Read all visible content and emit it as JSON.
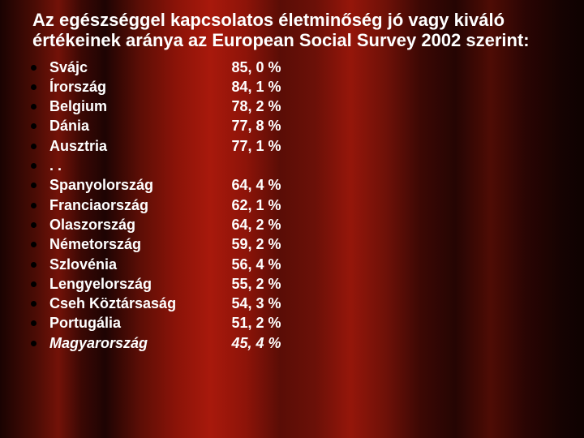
{
  "title": "Az egészséggel kapcsolatos életminőség jó vagy kiváló értékeinek aránya az European Social Survey 2002 szerint:",
  "rows": [
    {
      "country": "Svájc",
      "value": "85, 0 %",
      "italic": false
    },
    {
      "country": "Írország",
      "value": "84, 1 %",
      "italic": false
    },
    {
      "country": "Belgium",
      "value": "78, 2 %",
      "italic": false
    },
    {
      "country": "Dánia",
      "value": "77, 8 %",
      "italic": false
    },
    {
      "country": "Ausztria",
      "value": "77, 1 %",
      "italic": false
    },
    {
      "country": ". .",
      "value": "",
      "italic": false
    },
    {
      "country": "Spanyolország",
      "value": "64, 4 %",
      "italic": false
    },
    {
      "country": "Franciaország",
      "value": "62, 1 %",
      "italic": false
    },
    {
      "country": "Olaszország",
      "value": "64, 2 %",
      "italic": false
    },
    {
      "country": "Németország",
      "value": "59, 2 %",
      "italic": false
    },
    {
      "country": "Szlovénia",
      "value": "56, 4 %",
      "italic": false
    },
    {
      "country": "Lengyelország",
      "value": "55, 2 %",
      "italic": false
    },
    {
      "country": "Cseh Köztársaság",
      "value": "54, 3 %",
      "italic": false
    },
    {
      "country": "Portugália",
      "value": "51, 2 %",
      "italic": false
    },
    {
      "country": "Magyarország",
      "value": "45, 4 %",
      "italic": true
    }
  ],
  "colors": {
    "text": "#ffffff",
    "bullet": "#000000"
  },
  "fonts": {
    "title_pt": 22,
    "row_pt": 18,
    "family": "Verdana"
  }
}
